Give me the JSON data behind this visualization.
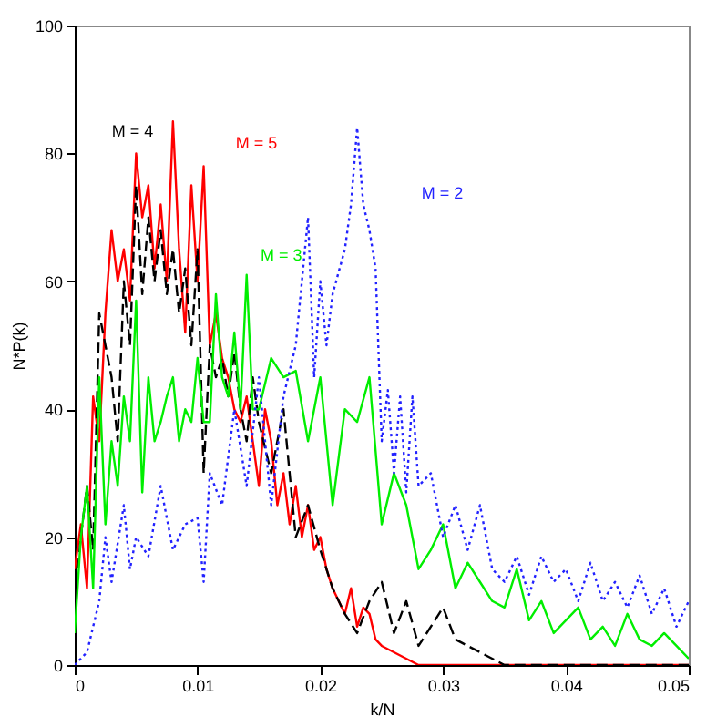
{
  "chart_data": {
    "type": "line",
    "xlabel": "k/N",
    "ylabel": "N*P(k)",
    "xlim": [
      0,
      0.05
    ],
    "ylim": [
      0,
      100
    ],
    "xticks": [
      0,
      0.01,
      0.02,
      0.03,
      0.04,
      0.05
    ],
    "yticks": [
      0,
      20,
      40,
      60,
      80,
      100
    ],
    "grid": false,
    "series": [
      {
        "name": "M = 5",
        "color": "#ff0000",
        "line_style": "solid",
        "x": [
          0,
          0.0005,
          0.001,
          0.0015,
          0.002,
          0.0025,
          0.003,
          0.0035,
          0.004,
          0.0045,
          0.005,
          0.0055,
          0.006,
          0.0065,
          0.007,
          0.0075,
          0.008,
          0.0085,
          0.009,
          0.0095,
          0.01,
          0.0105,
          0.011,
          0.0115,
          0.012,
          0.0125,
          0.013,
          0.0135,
          0.014,
          0.0145,
          0.015,
          0.0155,
          0.016,
          0.0165,
          0.017,
          0.0175,
          0.018,
          0.0185,
          0.019,
          0.0195,
          0.02,
          0.0205,
          0.021,
          0.0215,
          0.022,
          0.0225,
          0.023,
          0.0235,
          0.024,
          0.0245,
          0.025,
          0.026,
          0.027,
          0.028,
          0.03,
          0.035,
          0.04,
          0.045,
          0.05
        ],
        "values": [
          15,
          22,
          12,
          42,
          35,
          55,
          68,
          60,
          65,
          57,
          80,
          70,
          75,
          62,
          72,
          60,
          85,
          65,
          52,
          75,
          60,
          78,
          50,
          55,
          48,
          45,
          40,
          38,
          42,
          35,
          28,
          40,
          35,
          25,
          30,
          22,
          28,
          20,
          25,
          18,
          20,
          15,
          12,
          10,
          8,
          12,
          6,
          9,
          8,
          4,
          3,
          2,
          1,
          0,
          0,
          0,
          0,
          0,
          0
        ]
      },
      {
        "name": "M = 4",
        "color": "#000000",
        "line_style": "dashed",
        "x": [
          0,
          0.0005,
          0.001,
          0.0015,
          0.002,
          0.0025,
          0.003,
          0.0035,
          0.004,
          0.0045,
          0.005,
          0.0055,
          0.006,
          0.0065,
          0.007,
          0.0075,
          0.008,
          0.0085,
          0.009,
          0.0095,
          0.01,
          0.0105,
          0.011,
          0.0115,
          0.012,
          0.0125,
          0.013,
          0.0135,
          0.014,
          0.0145,
          0.015,
          0.016,
          0.017,
          0.018,
          0.019,
          0.02,
          0.021,
          0.022,
          0.023,
          0.024,
          0.025,
          0.026,
          0.027,
          0.028,
          0.029,
          0.03,
          0.031,
          0.032,
          0.033,
          0.034,
          0.035,
          0.04,
          0.045,
          0.05
        ],
        "values": [
          10,
          20,
          28,
          18,
          55,
          50,
          45,
          35,
          60,
          50,
          75,
          58,
          70,
          60,
          68,
          58,
          65,
          55,
          62,
          50,
          65,
          30,
          50,
          45,
          48,
          42,
          49,
          40,
          35,
          45,
          38,
          30,
          40,
          20,
          25,
          18,
          12,
          8,
          5,
          10,
          13,
          5,
          10,
          3,
          6,
          9,
          4,
          3,
          2,
          1,
          0,
          0,
          0,
          0
        ]
      },
      {
        "name": "M = 3",
        "color": "#00ee00",
        "line_style": "solid",
        "x": [
          0,
          0.0005,
          0.001,
          0.0015,
          0.002,
          0.0025,
          0.003,
          0.0035,
          0.004,
          0.0045,
          0.005,
          0.0055,
          0.006,
          0.0065,
          0.007,
          0.0075,
          0.008,
          0.0085,
          0.009,
          0.0095,
          0.01,
          0.0105,
          0.011,
          0.0115,
          0.012,
          0.0125,
          0.013,
          0.0135,
          0.014,
          0.0145,
          0.015,
          0.016,
          0.017,
          0.018,
          0.019,
          0.02,
          0.021,
          0.022,
          0.023,
          0.024,
          0.025,
          0.026,
          0.027,
          0.028,
          0.029,
          0.03,
          0.031,
          0.032,
          0.033,
          0.034,
          0.035,
          0.036,
          0.037,
          0.038,
          0.039,
          0.04,
          0.041,
          0.042,
          0.043,
          0.044,
          0.045,
          0.046,
          0.047,
          0.048,
          0.049,
          0.05
        ],
        "values": [
          5,
          20,
          28,
          12,
          45,
          22,
          35,
          28,
          42,
          35,
          57,
          27,
          45,
          35,
          38,
          42,
          45,
          35,
          40,
          38,
          48,
          38,
          38,
          58,
          45,
          42,
          52,
          40,
          61,
          40,
          40,
          48,
          45,
          46,
          35,
          45,
          25,
          40,
          38,
          45,
          22,
          30,
          25,
          15,
          18,
          22,
          12,
          16,
          13,
          10,
          9,
          15,
          7,
          10,
          5,
          7,
          9,
          4,
          6,
          3,
          8,
          4,
          3,
          5,
          3,
          1
        ]
      },
      {
        "name": "M = 2",
        "color": "#2222ff",
        "line_style": "dotted",
        "x": [
          0,
          0.001,
          0.002,
          0.0025,
          0.003,
          0.004,
          0.0045,
          0.005,
          0.006,
          0.007,
          0.008,
          0.009,
          0.01,
          0.0105,
          0.011,
          0.012,
          0.013,
          0.014,
          0.015,
          0.016,
          0.017,
          0.018,
          0.019,
          0.0195,
          0.02,
          0.0205,
          0.021,
          0.022,
          0.0225,
          0.023,
          0.0235,
          0.024,
          0.0245,
          0.025,
          0.0255,
          0.026,
          0.0265,
          0.027,
          0.0275,
          0.028,
          0.029,
          0.03,
          0.031,
          0.032,
          0.033,
          0.034,
          0.035,
          0.036,
          0.037,
          0.038,
          0.039,
          0.04,
          0.041,
          0.042,
          0.043,
          0.044,
          0.045,
          0.046,
          0.047,
          0.048,
          0.049,
          0.05
        ],
        "values": [
          0,
          2,
          10,
          20,
          13,
          25,
          15,
          20,
          17,
          28,
          18,
          22,
          23,
          13,
          30,
          25,
          40,
          28,
          45,
          25,
          42,
          50,
          70,
          45,
          60,
          50,
          58,
          65,
          72,
          84,
          72,
          68,
          62,
          35,
          43,
          30,
          42,
          27,
          42,
          28,
          30,
          20,
          25,
          18,
          25,
          15,
          13,
          17,
          11,
          17,
          13,
          15,
          10,
          16,
          10,
          13,
          9,
          14,
          8,
          12,
          6,
          10
        ]
      }
    ]
  }
}
